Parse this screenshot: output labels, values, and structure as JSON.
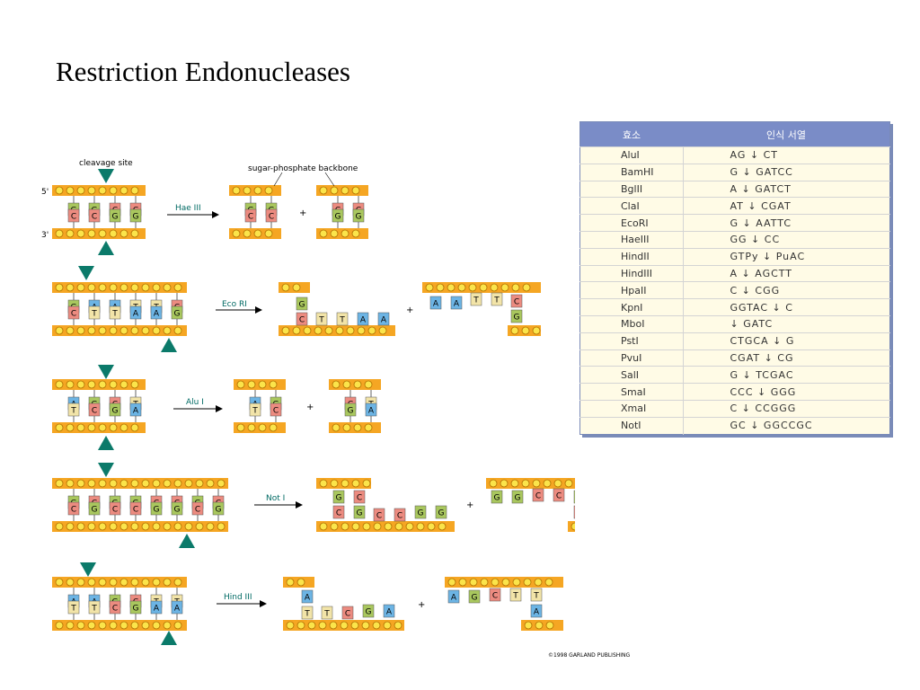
{
  "title": "Restriction Endonucleases",
  "labels": {
    "cleavage_site": "cleavage site",
    "backbone": "sugar-phosphate backbone",
    "five_prime": "5'",
    "three_prime": "3'",
    "plus": "+"
  },
  "enzymes": [
    "Hae III",
    "Eco RI",
    "Alu I",
    "Not I",
    "Hind III"
  ],
  "table": {
    "header": [
      "효소",
      "인식 서열"
    ],
    "rows": [
      {
        "name": "AluI",
        "seq": "AG ↓ CT"
      },
      {
        "name": "BamHI",
        "seq": "G ↓ GATCC"
      },
      {
        "name": "BglII",
        "seq": "A ↓ GATCT"
      },
      {
        "name": "ClaI",
        "seq": "AT ↓ CGAT"
      },
      {
        "name": "EcoRI",
        "seq": "G ↓ AATTC"
      },
      {
        "name": "HaeIII",
        "seq": "GG ↓ CC"
      },
      {
        "name": "HindII",
        "seq": "GTPy ↓ PuAC"
      },
      {
        "name": "HindIII",
        "seq": "A ↓ AGCTT"
      },
      {
        "name": "HpaII",
        "seq": "C ↓ CGG"
      },
      {
        "name": "KpnI",
        "seq": "GGTAC ↓ C"
      },
      {
        "name": "MboI",
        "seq": "↓ GATC"
      },
      {
        "name": "PstI",
        "seq": "CTGCA ↓ G"
      },
      {
        "name": "PvuI",
        "seq": "CGAT ↓ CG"
      },
      {
        "name": "SalI",
        "seq": "G ↓ TCGAC"
      },
      {
        "name": "SmaI",
        "seq": "CCC ↓ GGG"
      },
      {
        "name": "XmaI",
        "seq": "C ↓ CCGGG"
      },
      {
        "name": "NotI",
        "seq": "GC ↓ GGCCGC"
      }
    ]
  },
  "colors": {
    "A": "#6cb4e4",
    "T": "#f2e4a8",
    "G": "#a9c75e",
    "C": "#ec8b80",
    "backbone": "#f5a623"
  },
  "copyright": "©1998 GARLAND PUBLISHING"
}
